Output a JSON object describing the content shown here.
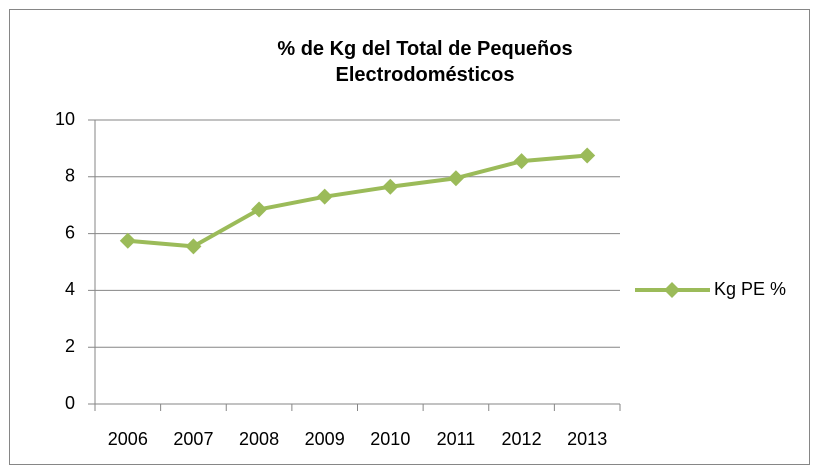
{
  "chart_data": {
    "type": "line",
    "title": "% de Kg del Total  de Pequeños Electrodomésticos",
    "categories": [
      "2006",
      "2007",
      "2008",
      "2009",
      "2010",
      "2011",
      "2012",
      "2013"
    ],
    "series": [
      {
        "name": "Kg PE %",
        "color": "#9bbb59",
        "values": [
          5.75,
          5.55,
          6.85,
          7.3,
          7.65,
          7.95,
          8.55,
          8.75
        ]
      }
    ],
    "ylim": [
      0,
      10
    ],
    "yticks": [
      0,
      2,
      4,
      6,
      8,
      10
    ],
    "grid": true,
    "legend": "right"
  }
}
